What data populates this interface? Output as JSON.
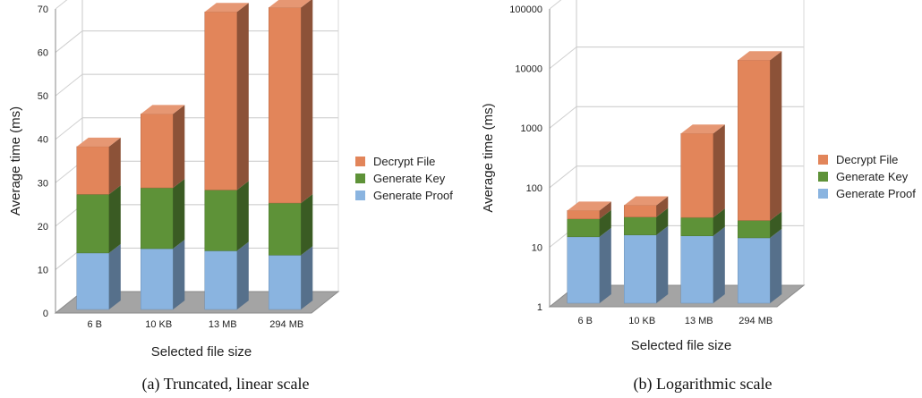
{
  "chart_data": [
    {
      "type": "bar",
      "stacked": true,
      "caption": "(a) Truncated, linear scale",
      "xlabel": "Selected file size",
      "ylabel": "Average time (ms)",
      "categories": [
        "6 B",
        "10 KB",
        "13 MB",
        "294 MB"
      ],
      "y_scale": "linear",
      "ylim": [
        0,
        70
      ],
      "yticks": [
        0,
        10,
        20,
        30,
        40,
        50,
        60,
        70
      ],
      "grid": true,
      "legend_position": "right",
      "series": [
        {
          "name": "Generate Proof",
          "color": "#8ab4e0",
          "values": [
            13,
            14,
            13.5,
            12.5
          ]
        },
        {
          "name": "Generate Key",
          "color": "#5e9238",
          "values": [
            13.5,
            14,
            14,
            12
          ]
        },
        {
          "name": "Decrypt File",
          "color": "#e2855a",
          "values": [
            11,
            17,
            41,
            45
          ]
        }
      ]
    },
    {
      "type": "bar",
      "stacked": true,
      "caption": "(b) Logarithmic scale",
      "xlabel": "Selected file size",
      "ylabel": "Average time (ms)",
      "categories": [
        "6 B",
        "10 KB",
        "13 MB",
        "294 MB"
      ],
      "y_scale": "log",
      "ylim": [
        1,
        100000
      ],
      "yticks": [
        1,
        10,
        100,
        1000,
        10000,
        100000
      ],
      "grid": true,
      "legend_position": "right",
      "series": [
        {
          "name": "Generate Proof",
          "color": "#8ab4e0",
          "values": [
            13,
            14,
            13.5,
            12.5
          ]
        },
        {
          "name": "Generate Key",
          "color": "#5e9238",
          "values": [
            13,
            14,
            14,
            12
          ]
        },
        {
          "name": "Decrypt File",
          "color": "#e2855a",
          "values": [
            10,
            16,
            680,
            12000
          ]
        }
      ]
    }
  ]
}
